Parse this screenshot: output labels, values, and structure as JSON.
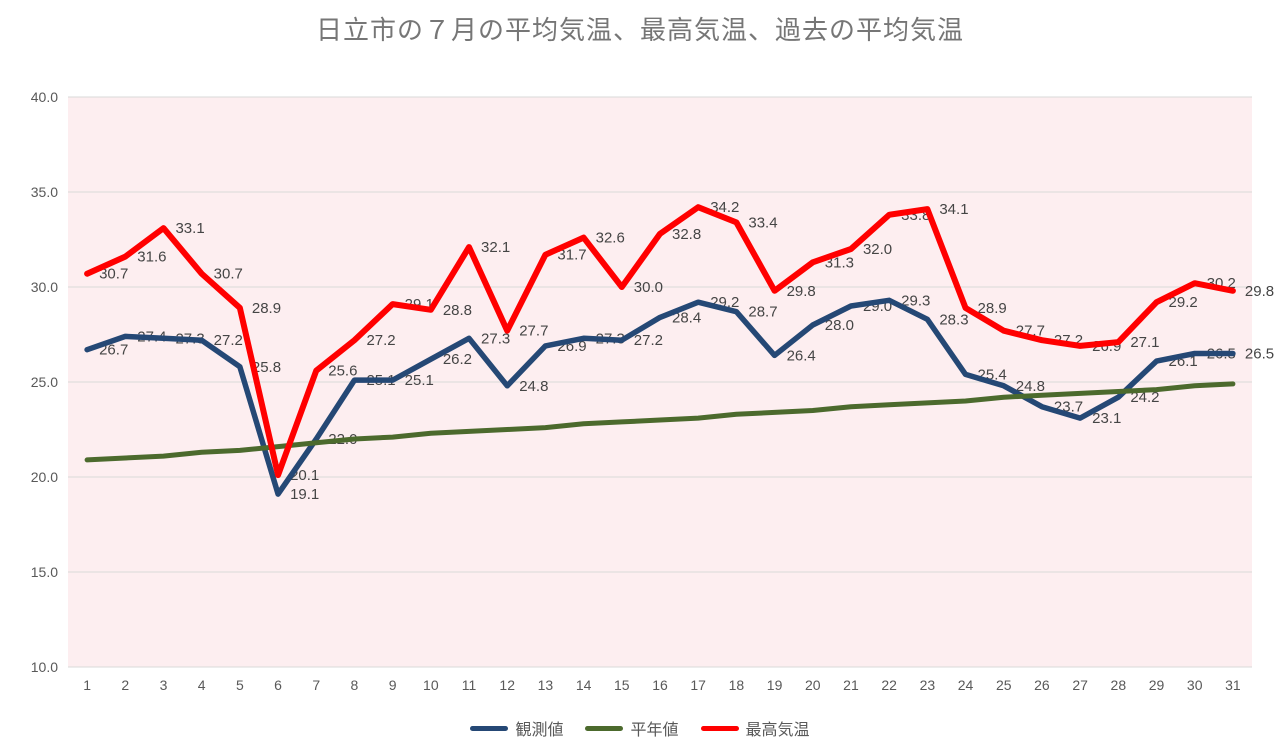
{
  "title": "日立市の７月の平均気温、最高気温、過去の平均気温",
  "chart_data": {
    "type": "line",
    "title": "日立市の７月の平均気温、最高気温、過去の平均気温",
    "x": [
      "1",
      "2",
      "3",
      "4",
      "5",
      "6",
      "7",
      "8",
      "9",
      "10",
      "11",
      "12",
      "13",
      "14",
      "15",
      "16",
      "17",
      "18",
      "19",
      "20",
      "21",
      "22",
      "23",
      "24",
      "25",
      "26",
      "27",
      "28",
      "29",
      "30",
      "31"
    ],
    "xlabel": "",
    "ylabel": "",
    "ylim": [
      10.0,
      40.0
    ],
    "y_ticks": [
      "10.0",
      "15.0",
      "20.0",
      "25.0",
      "30.0",
      "35.0",
      "40.0"
    ],
    "grid": "horizontal",
    "legend_position": "bottom",
    "plot_bg": "#fdeef0",
    "grid_color": "#d9d9d9",
    "axis_text_color": "#595959",
    "label_color": "#454545",
    "series": [
      {
        "id": "observed",
        "name": "観測値",
        "color": "#254875",
        "line_width": 5.5,
        "data_labels": true,
        "values": [
          26.7,
          27.4,
          27.3,
          27.2,
          25.8,
          19.1,
          22.0,
          25.1,
          25.1,
          26.2,
          27.3,
          24.8,
          26.9,
          27.3,
          27.2,
          28.4,
          29.2,
          28.7,
          26.4,
          28.0,
          29.0,
          29.3,
          28.3,
          25.4,
          24.8,
          23.7,
          23.1,
          24.2,
          26.1,
          26.5,
          26.5
        ]
      },
      {
        "id": "normal",
        "name": "平年値",
        "color": "#4c6a2d",
        "line_width": 5,
        "data_labels": false,
        "values": [
          20.9,
          21.0,
          21.1,
          21.3,
          21.4,
          21.6,
          21.8,
          22.0,
          22.1,
          22.3,
          22.4,
          22.5,
          22.6,
          22.8,
          22.9,
          23.0,
          23.1,
          23.3,
          23.4,
          23.5,
          23.7,
          23.8,
          23.9,
          24.0,
          24.2,
          24.3,
          24.4,
          24.5,
          24.6,
          24.8,
          24.9
        ]
      },
      {
        "id": "max",
        "name": "最高気温",
        "color": "#ff0000",
        "line_width": 6,
        "data_labels": true,
        "values": [
          30.7,
          31.6,
          33.1,
          30.7,
          28.9,
          20.1,
          25.6,
          27.2,
          29.1,
          28.8,
          32.1,
          27.7,
          31.7,
          32.6,
          30.0,
          32.8,
          34.2,
          33.4,
          29.8,
          31.3,
          32.0,
          33.8,
          34.1,
          28.9,
          27.7,
          27.2,
          26.9,
          27.1,
          29.2,
          30.2,
          29.8
        ]
      }
    ]
  }
}
